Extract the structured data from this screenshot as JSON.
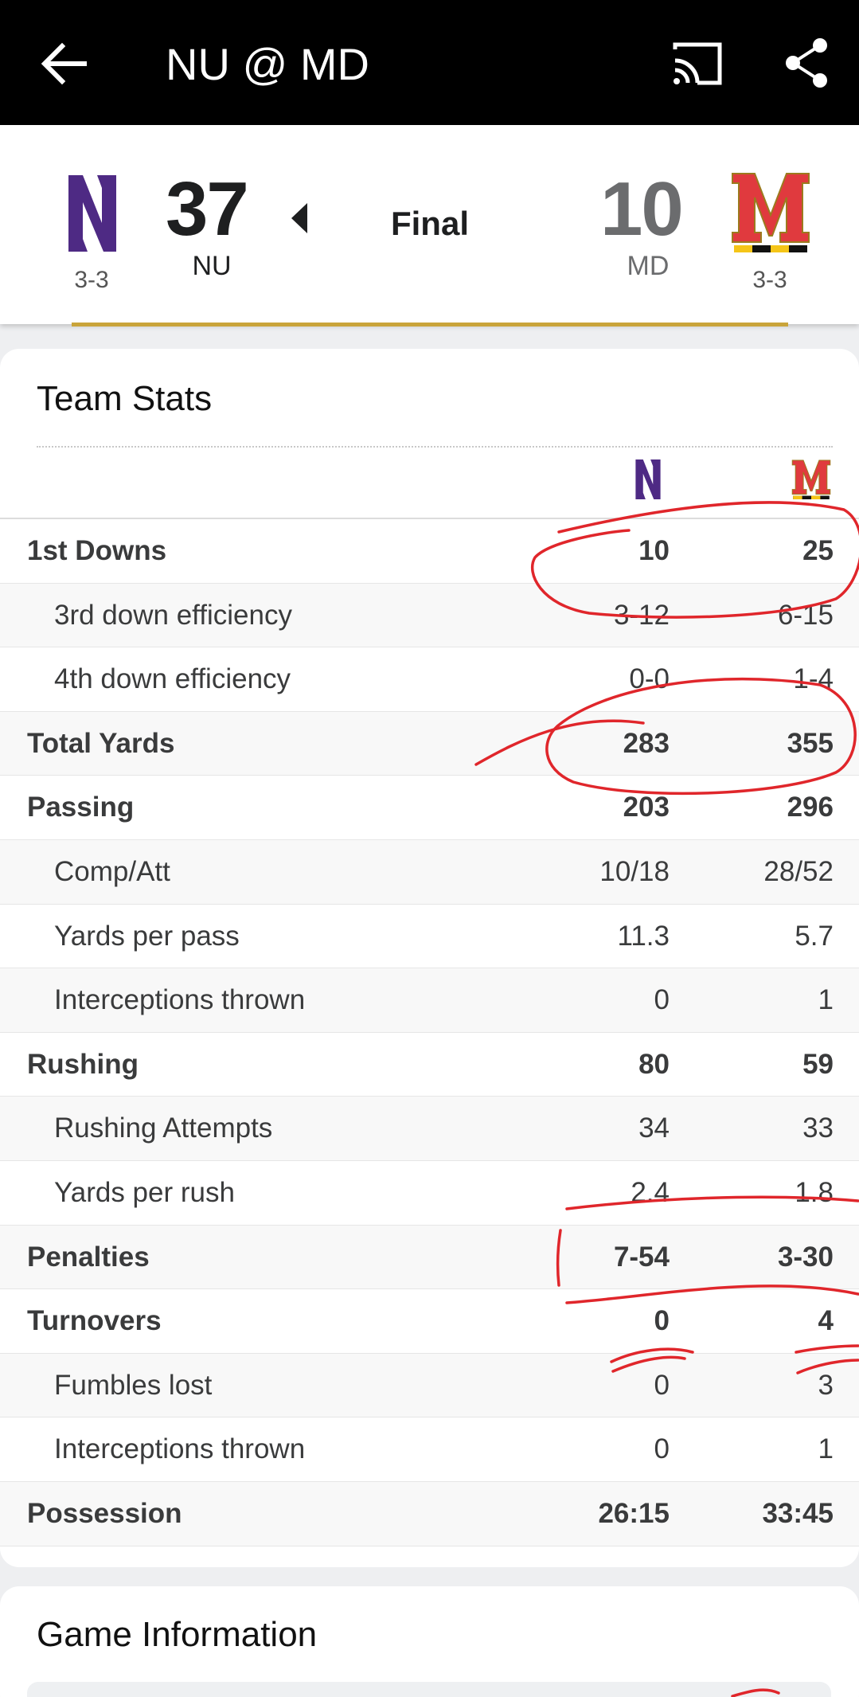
{
  "header": {
    "title": "NU @ MD",
    "back_icon": "arrow-left-icon",
    "cast_icon": "cast-icon",
    "share_icon": "share-icon"
  },
  "scoreboard": {
    "away": {
      "abbr": "NU",
      "score": "37",
      "record": "3-3",
      "color": "#4e2a84"
    },
    "home": {
      "abbr": "MD",
      "score": "10",
      "record": "3-3",
      "color": "#e03a3e"
    },
    "status": "Final"
  },
  "team_stats": {
    "title": "Team Stats",
    "rows": [
      {
        "label": "1st Downs",
        "nu": "10",
        "md": "25"
      },
      {
        "label": "3rd down efficiency",
        "nu": "3-12",
        "md": "6-15"
      },
      {
        "label": "4th down efficiency",
        "nu": "0-0",
        "md": "1-4"
      },
      {
        "label": "Total Yards",
        "nu": "283",
        "md": "355"
      },
      {
        "label": "Passing",
        "nu": "203",
        "md": "296"
      },
      {
        "label": "Comp/Att",
        "nu": "10/18",
        "md": "28/52"
      },
      {
        "label": "Yards per pass",
        "nu": "11.3",
        "md": "5.7"
      },
      {
        "label": "Interceptions thrown",
        "nu": "0",
        "md": "1"
      },
      {
        "label": "Rushing",
        "nu": "80",
        "md": "59"
      },
      {
        "label": "Rushing Attempts",
        "nu": "34",
        "md": "33"
      },
      {
        "label": "Yards per rush",
        "nu": "2.4",
        "md": "1.8"
      },
      {
        "label": "Penalties",
        "nu": "7-54",
        "md": "3-30"
      },
      {
        "label": "Turnovers",
        "nu": "0",
        "md": "4"
      },
      {
        "label": "Fumbles lost",
        "nu": "0",
        "md": "3"
      },
      {
        "label": "Interceptions thrown",
        "nu": "0",
        "md": "1"
      },
      {
        "label": "Possession",
        "nu": "26:15",
        "md": "33:45"
      }
    ]
  },
  "game_info": {
    "title": "Game Information"
  },
  "annotation_color": "#e0262b"
}
